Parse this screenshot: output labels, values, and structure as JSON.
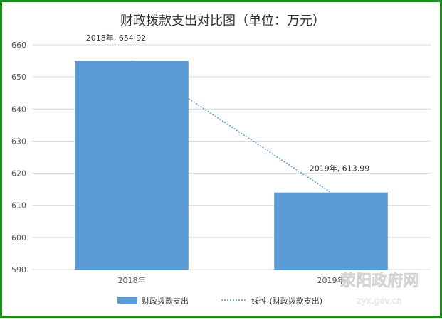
{
  "chart_data": {
    "type": "bar",
    "title": "财政拨款支出对比图（单位：万元）",
    "categories": [
      "2018年",
      "2019年"
    ],
    "series": [
      {
        "name": "财政拨款支出",
        "values": [
          654.92,
          613.99
        ],
        "color": "#5b9bd5"
      }
    ],
    "trendline": {
      "name": "线性 (财政拨款支出)",
      "style": "dotted",
      "color": "#5b9bd5"
    },
    "data_labels": [
      "2018年, 654.92",
      "2019年, 613.99"
    ],
    "ylim": [
      590,
      660
    ],
    "yticks": [
      "590",
      "600",
      "610",
      "620",
      "630",
      "640",
      "650",
      "660"
    ],
    "grid": true,
    "legend_position": "bottom"
  },
  "watermark": {
    "text_cn": "荥阳政府网",
    "text_en": "zyx.gov.cn"
  }
}
